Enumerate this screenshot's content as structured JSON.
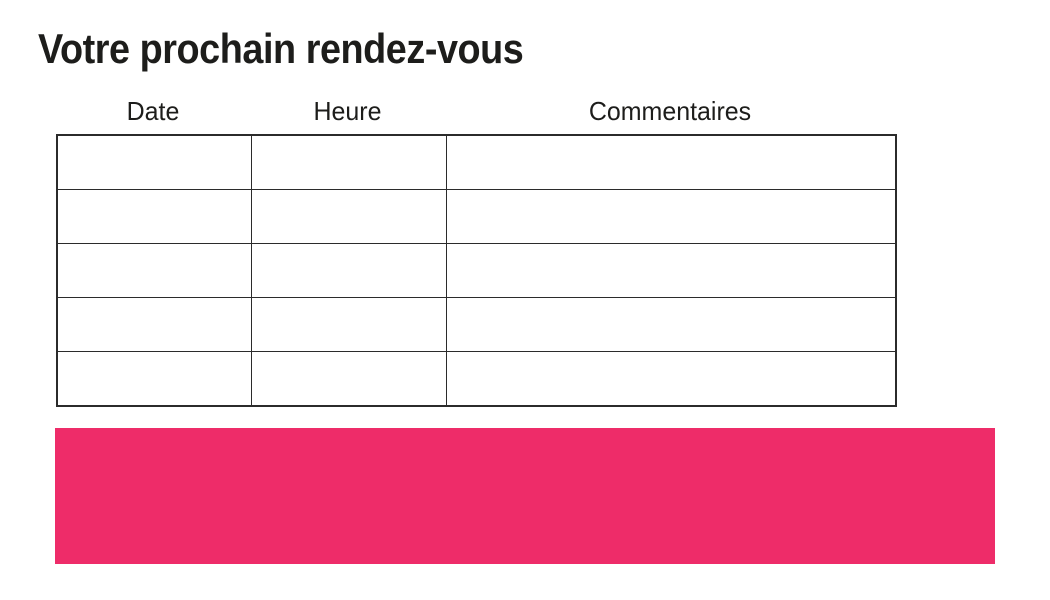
{
  "page": {
    "title": "Votre prochain rendez-vous"
  },
  "appointments_table": {
    "columns": [
      {
        "id": "date",
        "label": "Date"
      },
      {
        "id": "heure",
        "label": "Heure"
      },
      {
        "id": "commentaires",
        "label": "Commentaires"
      }
    ],
    "rows": [
      [
        "",
        "",
        ""
      ],
      [
        "",
        "",
        ""
      ],
      [
        "",
        "",
        ""
      ],
      [
        "",
        "",
        ""
      ],
      [
        "",
        "",
        ""
      ]
    ]
  },
  "colors": {
    "accent_pink": "#EE2C69",
    "text_black": "#1D1D1B",
    "table_border": "#2B2B2B"
  }
}
